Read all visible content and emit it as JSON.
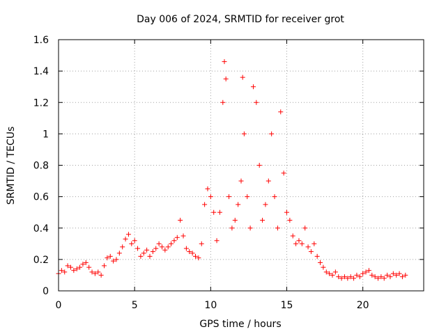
{
  "chart_data": {
    "type": "scatter",
    "title": "Day 006 of 2024, SRMTID for receiver grot",
    "xlabel": "GPS time / hours",
    "ylabel": "SRMTID / TECUs",
    "xlim": [
      0,
      24
    ],
    "ylim": [
      0,
      1.6
    ],
    "x_ticks": [
      0,
      5,
      10,
      15,
      20
    ],
    "x_tick_labels": [
      "0",
      "5",
      "10",
      "15",
      "20"
    ],
    "y_ticks": [
      0,
      0.2,
      0.4,
      0.6,
      0.8,
      1.0,
      1.2,
      1.4,
      1.6
    ],
    "y_tick_labels": [
      "0",
      "0.2",
      "0.4",
      "0.6",
      "0.8",
      "1",
      "1.2",
      "1.4",
      "1.6"
    ],
    "grid": true,
    "marker": "+",
    "color": "#ff0000",
    "series": [
      {
        "name": "SRMTID",
        "points": [
          [
            0.0,
            0.11
          ],
          [
            0.2,
            0.13
          ],
          [
            0.4,
            0.12
          ],
          [
            0.6,
            0.16
          ],
          [
            0.8,
            0.15
          ],
          [
            1.0,
            0.13
          ],
          [
            1.2,
            0.14
          ],
          [
            1.4,
            0.15
          ],
          [
            1.6,
            0.17
          ],
          [
            1.8,
            0.18
          ],
          [
            2.0,
            0.15
          ],
          [
            2.2,
            0.12
          ],
          [
            2.4,
            0.11
          ],
          [
            2.6,
            0.12
          ],
          [
            2.8,
            0.1
          ],
          [
            3.0,
            0.16
          ],
          [
            3.2,
            0.21
          ],
          [
            3.4,
            0.22
          ],
          [
            3.6,
            0.19
          ],
          [
            3.8,
            0.2
          ],
          [
            4.0,
            0.24
          ],
          [
            4.2,
            0.28
          ],
          [
            4.4,
            0.33
          ],
          [
            4.6,
            0.36
          ],
          [
            4.8,
            0.3
          ],
          [
            5.0,
            0.32
          ],
          [
            5.2,
            0.27
          ],
          [
            5.4,
            0.22
          ],
          [
            5.6,
            0.24
          ],
          [
            5.8,
            0.26
          ],
          [
            6.0,
            0.22
          ],
          [
            6.2,
            0.25
          ],
          [
            6.4,
            0.27
          ],
          [
            6.6,
            0.3
          ],
          [
            6.8,
            0.28
          ],
          [
            7.0,
            0.26
          ],
          [
            7.2,
            0.28
          ],
          [
            7.4,
            0.3
          ],
          [
            7.6,
            0.32
          ],
          [
            7.8,
            0.34
          ],
          [
            8.0,
            0.45
          ],
          [
            8.2,
            0.35
          ],
          [
            8.4,
            0.27
          ],
          [
            8.6,
            0.25
          ],
          [
            8.8,
            0.24
          ],
          [
            9.0,
            0.22
          ],
          [
            9.2,
            0.21
          ],
          [
            9.4,
            0.3
          ],
          [
            9.6,
            0.55
          ],
          [
            9.8,
            0.65
          ],
          [
            10.0,
            0.6
          ],
          [
            10.2,
            0.5
          ],
          [
            10.4,
            0.32
          ],
          [
            10.6,
            0.5
          ],
          [
            10.8,
            1.2
          ],
          [
            10.9,
            1.46
          ],
          [
            11.0,
            1.35
          ],
          [
            11.2,
            0.6
          ],
          [
            11.4,
            0.4
          ],
          [
            11.6,
            0.45
          ],
          [
            11.8,
            0.55
          ],
          [
            12.0,
            0.7
          ],
          [
            12.1,
            1.36
          ],
          [
            12.2,
            1.0
          ],
          [
            12.4,
            0.6
          ],
          [
            12.6,
            0.4
          ],
          [
            12.8,
            1.3
          ],
          [
            13.0,
            1.2
          ],
          [
            13.2,
            0.8
          ],
          [
            13.4,
            0.45
          ],
          [
            13.6,
            0.55
          ],
          [
            13.8,
            0.7
          ],
          [
            14.0,
            1.0
          ],
          [
            14.2,
            0.6
          ],
          [
            14.4,
            0.4
          ],
          [
            14.6,
            1.14
          ],
          [
            14.8,
            0.75
          ],
          [
            15.0,
            0.5
          ],
          [
            15.2,
            0.45
          ],
          [
            15.4,
            0.35
          ],
          [
            15.6,
            0.3
          ],
          [
            15.8,
            0.32
          ],
          [
            16.0,
            0.3
          ],
          [
            16.2,
            0.4
          ],
          [
            16.4,
            0.28
          ],
          [
            16.6,
            0.25
          ],
          [
            16.8,
            0.3
          ],
          [
            17.0,
            0.22
          ],
          [
            17.2,
            0.18
          ],
          [
            17.4,
            0.15
          ],
          [
            17.6,
            0.12
          ],
          [
            17.8,
            0.11
          ],
          [
            18.0,
            0.1
          ],
          [
            18.2,
            0.12
          ],
          [
            18.4,
            0.09
          ],
          [
            18.6,
            0.08
          ],
          [
            18.8,
            0.09
          ],
          [
            19.0,
            0.08
          ],
          [
            19.2,
            0.09
          ],
          [
            19.4,
            0.08
          ],
          [
            19.6,
            0.1
          ],
          [
            19.8,
            0.09
          ],
          [
            20.0,
            0.11
          ],
          [
            20.2,
            0.12
          ],
          [
            20.4,
            0.13
          ],
          [
            20.6,
            0.1
          ],
          [
            20.8,
            0.09
          ],
          [
            21.0,
            0.08
          ],
          [
            21.2,
            0.09
          ],
          [
            21.4,
            0.08
          ],
          [
            21.6,
            0.1
          ],
          [
            21.8,
            0.09
          ],
          [
            22.0,
            0.11
          ],
          [
            22.2,
            0.1
          ],
          [
            22.4,
            0.11
          ],
          [
            22.6,
            0.09
          ],
          [
            22.8,
            0.1
          ]
        ]
      }
    ]
  }
}
